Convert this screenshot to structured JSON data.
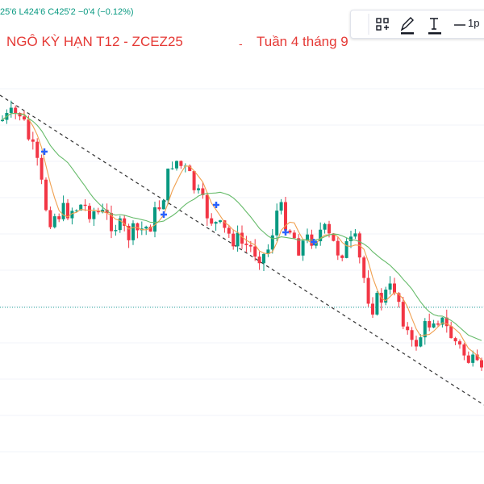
{
  "header": {
    "ohlc": "25'6  L424'6  C425'2  −0'4 (−0.12%)",
    "title": "NGÔ KỲ HẠN T12 - ZCEZ25",
    "dot": "-",
    "subtitle": "Tuần 4 tháng 9"
  },
  "toolbar": {
    "interval": "1p"
  }
}
